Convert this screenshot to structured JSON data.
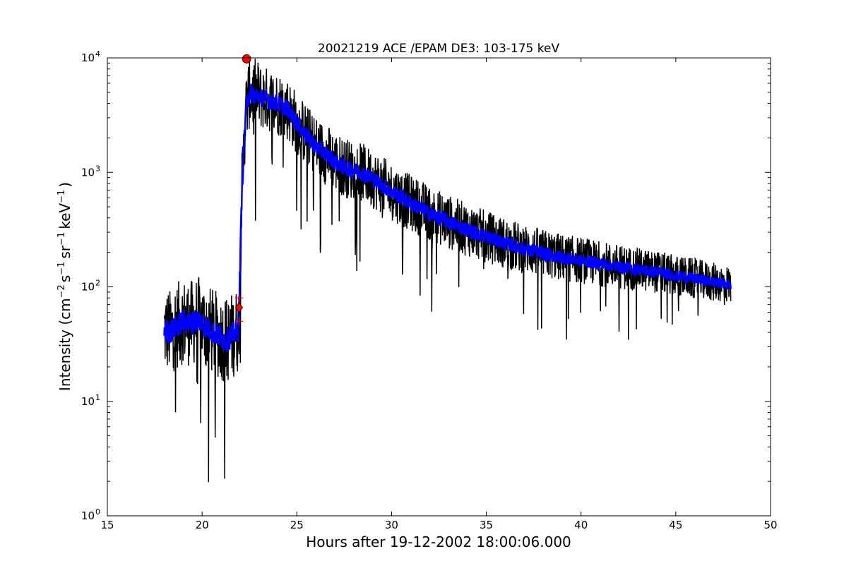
{
  "chart_data": {
    "type": "line",
    "title": "20021219 ACE /EPAM DE3: 103-175 keV",
    "xlabel": "Hours after 19-12-2002 18:00:06.000",
    "ylabel": {
      "prefix": "Intensity (cm",
      "exp1": "−2",
      "part2": "s",
      "exp2": "−1",
      "part3": "sr",
      "exp3": "−1",
      "part4": "keV",
      "exp4": "−1",
      "suffix": ")"
    },
    "xlim": [
      15,
      50
    ],
    "ylim": [
      1,
      10000
    ],
    "yscale": "log",
    "grid": false,
    "x_ticks": [
      15,
      20,
      25,
      30,
      35,
      40,
      45,
      50
    ],
    "x_tick_labels": [
      "15",
      "20",
      "25",
      "30",
      "35",
      "40",
      "45",
      "50"
    ],
    "y_ticks": [
      1,
      10,
      100,
      1000,
      10000
    ],
    "y_tick_labels": [
      {
        "base": "10",
        "exp": "0"
      },
      {
        "base": "10",
        "exp": "1"
      },
      {
        "base": "10",
        "exp": "2"
      },
      {
        "base": "10",
        "exp": "3"
      },
      {
        "base": "10",
        "exp": "4"
      }
    ],
    "series": [
      {
        "color": "#000000",
        "style": "raw",
        "x": [
          18.0,
          18.3,
          18.6,
          19.0,
          19.4,
          19.8,
          20.2,
          20.6,
          21.0,
          21.3,
          21.6,
          21.9,
          21.95,
          22.1,
          22.3,
          22.5,
          23.0,
          23.5,
          24.0,
          24.5,
          25.0,
          25.5,
          26.0,
          26.5,
          27.0,
          27.5,
          28.0,
          28.5,
          29.0,
          30.0,
          31.0,
          32.0,
          33.0,
          34.0,
          35.0,
          36.0,
          37.0,
          38.0,
          39.0,
          40.0,
          41.0,
          42.0,
          43.0,
          44.0,
          45.0,
          46.0,
          47.0,
          47.9
        ],
        "y": [
          42,
          40,
          45,
          50,
          48,
          52,
          45,
          40,
          36,
          34,
          38,
          42,
          66,
          700,
          3500,
          5000,
          4600,
          4300,
          4000,
          3600,
          2700,
          2100,
          1700,
          1450,
          1250,
          1100,
          1050,
          980,
          880,
          680,
          540,
          440,
          370,
          315,
          275,
          240,
          215,
          195,
          180,
          170,
          160,
          150,
          142,
          135,
          125,
          118,
          110,
          105
        ],
        "noise": 0.65
      },
      {
        "color": "#0000ff",
        "style": "smoothed",
        "x": [
          18.0,
          18.3,
          18.6,
          19.0,
          19.4,
          19.8,
          20.2,
          20.6,
          21.0,
          21.3,
          21.6,
          21.9,
          21.95,
          22.1,
          22.3,
          22.5,
          23.0,
          23.5,
          24.0,
          24.5,
          25.0,
          25.5,
          26.0,
          26.5,
          27.0,
          27.5,
          28.0,
          28.5,
          29.0,
          30.0,
          31.0,
          32.0,
          33.0,
          34.0,
          35.0,
          36.0,
          37.0,
          38.0,
          39.0,
          40.0,
          41.0,
          42.0,
          43.0,
          44.0,
          45.0,
          46.0,
          47.0,
          47.9
        ],
        "y": [
          42,
          40,
          45,
          50,
          48,
          52,
          45,
          40,
          36,
          34,
          38,
          42,
          66,
          700,
          3500,
          5000,
          4600,
          4300,
          4000,
          3600,
          2700,
          2100,
          1700,
          1450,
          1250,
          1100,
          1050,
          980,
          880,
          680,
          540,
          440,
          370,
          315,
          275,
          240,
          215,
          195,
          180,
          170,
          160,
          150,
          142,
          135,
          125,
          118,
          110,
          105
        ],
        "noise": 0.18
      }
    ],
    "markers": [
      {
        "shape": "circle",
        "color": "#ff0000",
        "x": 22.35,
        "y": 9800
      },
      {
        "shape": "diamond",
        "color": "#ff0000",
        "x": 21.95,
        "y": 66
      },
      {
        "shape": "plus",
        "color": "#ff0000",
        "x": 21.95,
        "y": 80
      },
      {
        "shape": "plus",
        "color": "#ff0000",
        "x": 21.95,
        "y": 50
      }
    ]
  }
}
